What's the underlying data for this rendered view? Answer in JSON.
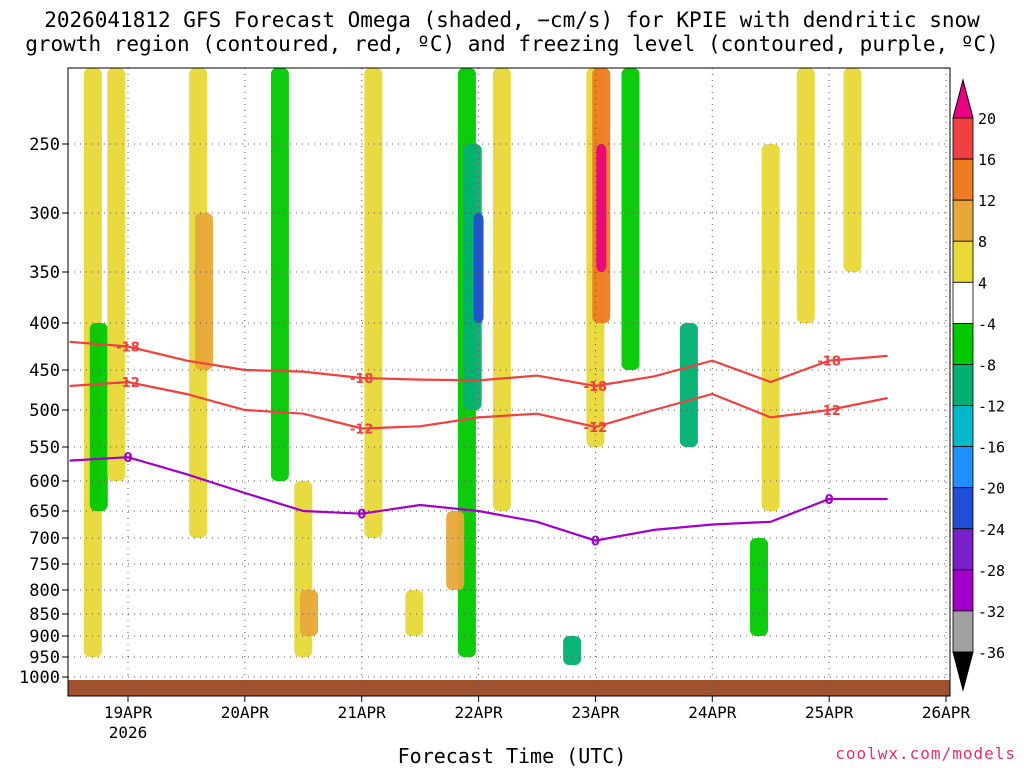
{
  "header": {
    "title_line1": "2026041812 GFS Forecast Omega (shaded, −cm/s) for KPIE with dendritic snow",
    "title_line2": "growth region (contoured, red, ºC) and freezing level (contoured, purple, ºC)"
  },
  "footer": {
    "credit": "coolwx.com/models"
  },
  "chart_data": {
    "type": "heatmap",
    "xlabel": "Forecast Time (UTC)",
    "ylabel": "",
    "x_range_days": [
      "18APR 12Z",
      "26APR 00Z"
    ],
    "x_ticks": [
      "19APR",
      "20APR",
      "21APR",
      "22APR",
      "23APR",
      "24APR",
      "25APR",
      "26APR"
    ],
    "x_tick_year": "2026",
    "y_ticks": [
      250,
      300,
      350,
      400,
      450,
      500,
      550,
      600,
      650,
      700,
      750,
      800,
      850,
      900,
      950,
      1000
    ],
    "y_range_hPa": [
      1000,
      200
    ],
    "grid": true,
    "colorbar": {
      "labels": [
        "20",
        "16",
        "12",
        "8",
        "4",
        "-4",
        "-8",
        "-12",
        "-16",
        "-20",
        "-24",
        "-28",
        "-32",
        "-36"
      ],
      "colors": [
        "#e8007e",
        "#f04040",
        "#ee7c20",
        "#e8a838",
        "#e8d838",
        "#ffffff",
        "#00c800",
        "#00b070",
        "#00b8c8",
        "#1e90ff",
        "#2050d8",
        "#7a20c8",
        "#a000c8",
        "#a0a0a0",
        "#000000"
      ]
    },
    "contours": [
      {
        "label": "-18",
        "color": "#f04040",
        "points": [
          [
            0,
            420
          ],
          [
            0.5,
            425
          ],
          [
            1,
            440
          ],
          [
            1.5,
            450
          ],
          [
            2,
            452
          ],
          [
            2.5,
            460
          ],
          [
            3,
            462
          ],
          [
            3.5,
            463
          ],
          [
            4,
            457
          ],
          [
            4.5,
            470
          ],
          [
            5,
            458
          ],
          [
            5.5,
            440
          ],
          [
            6,
            465
          ],
          [
            6.5,
            440
          ],
          [
            7,
            435
          ]
        ]
      },
      {
        "label": "-12",
        "color": "#f04040",
        "points": [
          [
            0,
            470
          ],
          [
            0.5,
            465
          ],
          [
            1,
            480
          ],
          [
            1.5,
            500
          ],
          [
            2,
            505
          ],
          [
            2.5,
            525
          ],
          [
            3,
            522
          ],
          [
            3.5,
            510
          ],
          [
            4,
            505
          ],
          [
            4.5,
            523
          ],
          [
            5,
            500
          ],
          [
            5.5,
            480
          ],
          [
            6,
            510
          ],
          [
            6.5,
            500
          ],
          [
            7,
            485
          ]
        ]
      },
      {
        "label": "0",
        "color": "#a000c8",
        "points": [
          [
            0,
            570
          ],
          [
            0.5,
            565
          ],
          [
            1,
            590
          ],
          [
            1.5,
            620
          ],
          [
            2,
            650
          ],
          [
            2.5,
            655
          ],
          [
            3,
            640
          ],
          [
            3.5,
            650
          ],
          [
            4,
            670
          ],
          [
            4.5,
            705
          ],
          [
            5,
            685
          ],
          [
            5.5,
            675
          ],
          [
            6,
            670
          ],
          [
            6.5,
            630
          ],
          [
            7,
            630
          ]
        ]
      }
    ],
    "shaded_features": [
      {
        "t": 0.2,
        "p_top": 200,
        "p_bot": 950,
        "value": 4
      },
      {
        "t": 0.25,
        "p_top": 400,
        "p_bot": 650,
        "value": -8
      },
      {
        "t": 0.4,
        "p_top": 200,
        "p_bot": 600,
        "value": 4
      },
      {
        "t": 1.1,
        "p_top": 200,
        "p_bot": 700,
        "value": 4
      },
      {
        "t": 1.15,
        "p_top": 300,
        "p_bot": 450,
        "value": 8
      },
      {
        "t": 1.8,
        "p_top": 200,
        "p_bot": 600,
        "value": -8
      },
      {
        "t": 2.0,
        "p_top": 600,
        "p_bot": 950,
        "value": 4
      },
      {
        "t": 2.05,
        "p_top": 800,
        "p_bot": 900,
        "value": 8
      },
      {
        "t": 2.6,
        "p_top": 200,
        "p_bot": 700,
        "value": 4
      },
      {
        "t": 2.95,
        "p_top": 800,
        "p_bot": 900,
        "value": 4
      },
      {
        "t": 3.4,
        "p_top": 200,
        "p_bot": 950,
        "value": -8
      },
      {
        "t": 3.45,
        "p_top": 250,
        "p_bot": 500,
        "value": -12
      },
      {
        "t": 3.5,
        "p_top": 300,
        "p_bot": 400,
        "value": -24
      },
      {
        "t": 3.3,
        "p_top": 650,
        "p_bot": 800,
        "value": 8
      },
      {
        "t": 3.7,
        "p_top": 200,
        "p_bot": 650,
        "value": 4
      },
      {
        "t": 4.5,
        "p_top": 200,
        "p_bot": 550,
        "value": 4
      },
      {
        "t": 4.55,
        "p_top": 200,
        "p_bot": 400,
        "value": 12
      },
      {
        "t": 4.55,
        "p_top": 250,
        "p_bot": 350,
        "value": 20
      },
      {
        "t": 4.8,
        "p_top": 200,
        "p_bot": 450,
        "value": -8
      },
      {
        "t": 4.3,
        "p_top": 900,
        "p_bot": 970,
        "value": -12
      },
      {
        "t": 5.3,
        "p_top": 400,
        "p_bot": 550,
        "value": -12
      },
      {
        "t": 5.9,
        "p_top": 700,
        "p_bot": 900,
        "value": -8
      },
      {
        "t": 6.0,
        "p_top": 250,
        "p_bot": 650,
        "value": 4
      },
      {
        "t": 6.3,
        "p_top": 200,
        "p_bot": 400,
        "value": 4
      },
      {
        "t": 6.7,
        "p_top": 200,
        "p_bot": 350,
        "value": 4
      }
    ]
  }
}
